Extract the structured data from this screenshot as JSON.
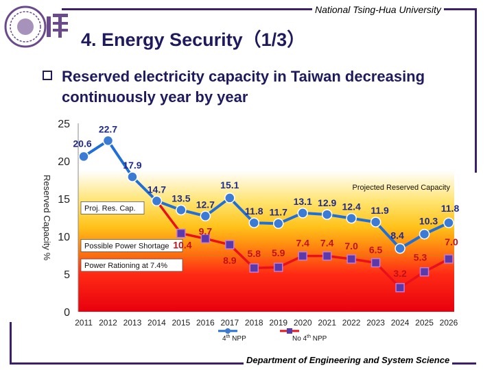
{
  "header": {
    "university": "National Tsing-Hua University",
    "title": "4. Energy  Security（1/3）"
  },
  "bullet": {
    "text": "Reserved electricity capacity in Taiwan decreasing continuously year by year"
  },
  "footer": {
    "department": "Department of Engineering and System Science"
  },
  "colors": {
    "series_npp": "#1f6fd6",
    "series_no_npp": "#e8101a",
    "marker_npp": "#3b7bd4",
    "marker_no_npp": "#5a3aa8",
    "label_npp": "#1f2a8a",
    "label_no_npp": "#c0101a",
    "frame": "#3b1f6b",
    "title": "#1f1a5e"
  },
  "chart_data": {
    "type": "line",
    "ylabel": "Reserved Capacity %",
    "ylim": [
      0,
      25
    ],
    "yticks": [
      "0",
      "5",
      "10",
      "15",
      "20",
      "25"
    ],
    "categories": [
      "2011",
      "2012",
      "2013",
      "2014",
      "2015",
      "2016",
      "2017",
      "2018",
      "2019",
      "2020",
      "2021",
      "2022",
      "2023",
      "2024",
      "2025",
      "2026"
    ],
    "series": [
      {
        "name": "4th NPP",
        "values": [
          20.6,
          22.7,
          17.9,
          14.7,
          13.5,
          12.7,
          15.1,
          11.8,
          11.7,
          13.1,
          12.9,
          12.4,
          11.9,
          8.4,
          10.3,
          11.8
        ],
        "labels": [
          "20.6",
          "22.7",
          "17.9",
          "14.7",
          "13.5",
          "12.7",
          "15.1",
          "11.8",
          "11.7",
          "13.1",
          "12.9",
          "12.4",
          "11.9",
          "8.4",
          "10.3",
          "11.8"
        ]
      },
      {
        "name": "No 4th NPP",
        "values": [
          20.6,
          22.7,
          17.9,
          14.7,
          10.4,
          9.7,
          8.9,
          5.8,
          5.9,
          7.4,
          7.4,
          7.0,
          6.5,
          3.2,
          5.3,
          7.0
        ],
        "labels": [
          "",
          "",
          "",
          "",
          "10.4",
          "9.7",
          "8.9",
          "5.8",
          "5.9",
          "7.4",
          "7.4",
          "7.0",
          "6.5",
          "3.2",
          "5.3",
          "7.0"
        ]
      }
    ],
    "bands": [
      {
        "label": "Proj. Res. Cap.",
        "from": 10,
        "to": 15
      },
      {
        "label": "Possible Power Shortage",
        "from": 7.4,
        "to": 10
      },
      {
        "label": "Power Rationing at 7.4%",
        "from": 0,
        "to": 7.4
      }
    ],
    "annotation": "Projected Reserved Capacity",
    "legend": [
      {
        "label": "4th NPP",
        "superscript": "th",
        "prefix": "4",
        "suffix": " NPP"
      },
      {
        "label": "No 4th NPP",
        "superscript": "th",
        "prefix": "No 4",
        "suffix": " NPP"
      }
    ]
  }
}
